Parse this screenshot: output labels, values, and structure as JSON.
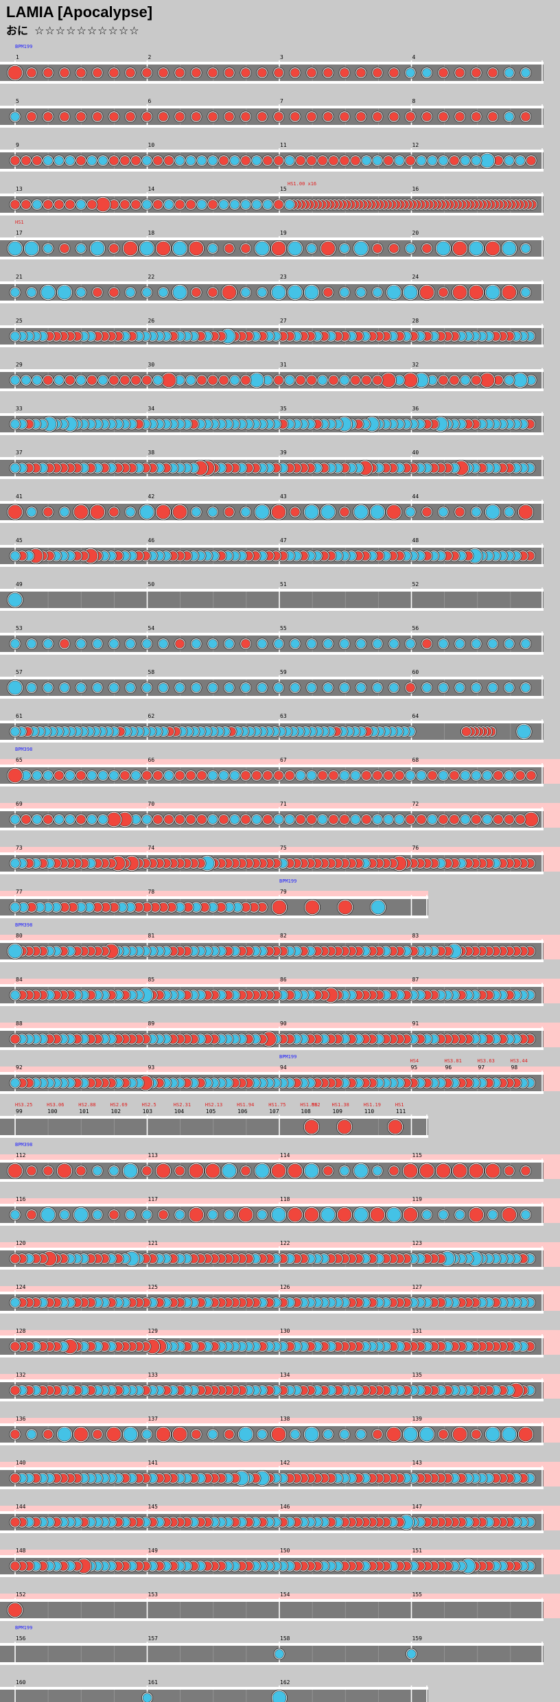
{
  "song": {
    "title": "LAMIA [Apocalypse]",
    "difficulty_label": "おに",
    "stars": "☆☆☆☆☆☆☆☆☆☆"
  },
  "colors": {
    "don": "#f0463c",
    "ka": "#44c2e6",
    "lane": "#7b7b7b",
    "gogo_background": "#ffc9c9",
    "bpm_text": "#1c1cff",
    "hs_text": "#e02020",
    "page_background": "#c9c9c9"
  },
  "chart": {
    "measures_per_row": 4,
    "rows": [
      {
        "row": 0,
        "measures": [
          "1",
          "2",
          "3",
          "4"
        ],
        "bpm_label": "BPM199",
        "pattern": "sparse_mixed",
        "big_first": true
      },
      {
        "row": 1,
        "measures": [
          "5",
          "6",
          "7",
          "8"
        ],
        "pattern": "sparse_don"
      },
      {
        "row": 2,
        "measures": [
          "9",
          "10",
          "11",
          "12"
        ],
        "pattern": "mixed"
      },
      {
        "row": 3,
        "measures": [
          "13",
          "14",
          "15",
          "16"
        ],
        "pattern": "mixed_roll",
        "annotation": "HS1.00 x16"
      },
      {
        "row": 4,
        "measures": [
          "17",
          "18",
          "19",
          "20"
        ],
        "hs_label": "HS1",
        "pattern": "big_mixed"
      },
      {
        "row": 5,
        "measures": [
          "21",
          "22",
          "23",
          "24"
        ],
        "pattern": "big_mixed"
      },
      {
        "row": 6,
        "measures": [
          "25",
          "26",
          "27",
          "28"
        ],
        "pattern": "dense_mixed"
      },
      {
        "row": 7,
        "measures": [
          "29",
          "30",
          "31",
          "32"
        ],
        "pattern": "mixed"
      },
      {
        "row": 8,
        "measures": [
          "33",
          "34",
          "35",
          "36"
        ],
        "pattern": "dense_ka"
      },
      {
        "row": 9,
        "measures": [
          "37",
          "38",
          "39",
          "40"
        ],
        "pattern": "dense_mixed"
      },
      {
        "row": 10,
        "measures": [
          "41",
          "42",
          "43",
          "44"
        ],
        "pattern": "big_mixed"
      },
      {
        "row": 11,
        "measures": [
          "45",
          "46",
          "47",
          "48"
        ],
        "pattern": "dense_mixed"
      },
      {
        "row": 12,
        "measures": [
          "49",
          "50",
          "51",
          "52"
        ],
        "pattern": "single_ka"
      },
      {
        "row": 13,
        "measures": [
          "53",
          "54",
          "55",
          "56"
        ],
        "pattern": "sparse_ka"
      },
      {
        "row": 14,
        "measures": [
          "57",
          "58",
          "59",
          "60"
        ],
        "pattern": "sparse_ka"
      },
      {
        "row": 15,
        "measures": [
          "61",
          "62",
          "63",
          "64"
        ],
        "pattern": "dense_ka_roll"
      },
      {
        "row": 16,
        "measures": [
          "65",
          "66",
          "67",
          "68"
        ],
        "bpm_label": "BPM398",
        "gogo": true,
        "pattern": "mixed"
      },
      {
        "row": 17,
        "measures": [
          "69",
          "70",
          "71",
          "72"
        ],
        "gogo": true,
        "pattern": "mixed"
      },
      {
        "row": 18,
        "measures": [
          "73",
          "74",
          "75",
          "76"
        ],
        "gogo": true,
        "pattern": "dense_don"
      },
      {
        "row": 19,
        "measures": [
          "77",
          "78",
          "79"
        ],
        "gogo": true,
        "bpm_label_mid": "BPM199",
        "pattern": "mixed_end"
      },
      {
        "row": 20,
        "measures": [
          "80",
          "81",
          "82",
          "83"
        ],
        "bpm_label": "BPM398",
        "gogo": true,
        "pattern": "dense_mixed"
      },
      {
        "row": 21,
        "measures": [
          "84",
          "85",
          "86",
          "87"
        ],
        "gogo": true,
        "pattern": "dense_mixed"
      },
      {
        "row": 22,
        "measures": [
          "88",
          "89",
          "90",
          "91"
        ],
        "gogo": true,
        "pattern": "dense_mixed"
      },
      {
        "row": 23,
        "measures": [
          "92",
          "93",
          "94",
          "95",
          "96",
          "97",
          "98"
        ],
        "gogo": true,
        "bpm_label_mid": "BPM199",
        "hs_labels": [
          "HS4",
          "HS3.81",
          "HS3.63",
          "HS3.44"
        ],
        "pattern": "dense_mixed"
      },
      {
        "row": 24,
        "measures": [
          "99",
          "100",
          "101",
          "102",
          "103",
          "104",
          "105",
          "106",
          "107",
          "108",
          "109",
          "110",
          "111"
        ],
        "hs_labels": [
          "HS3.25",
          "HS3.06",
          "HS2.88",
          "HS2.69",
          "HS2.5",
          "HS2.31",
          "HS2.13",
          "HS1.94",
          "HS1.75",
          "HS1.56",
          "HS1.38",
          "HS1.19",
          "HS1"
        ],
        "hs_label_end": "HS2",
        "pattern": "big_don_end"
      },
      {
        "row": 25,
        "measures": [
          "112",
          "113",
          "114",
          "115"
        ],
        "bpm_label": "BPM398",
        "gogo": true,
        "pattern": "big_mixed"
      },
      {
        "row": 26,
        "measures": [
          "116",
          "117",
          "118",
          "119"
        ],
        "gogo": true,
        "pattern": "big_mixed"
      },
      {
        "row": 27,
        "measures": [
          "120",
          "121",
          "122",
          "123"
        ],
        "gogo": true,
        "pattern": "dense_mixed"
      },
      {
        "row": 28,
        "measures": [
          "124",
          "125",
          "126",
          "127"
        ],
        "gogo": true,
        "pattern": "dense_mixed"
      },
      {
        "row": 29,
        "measures": [
          "128",
          "129",
          "130",
          "131"
        ],
        "gogo": true,
        "pattern": "dense_mixed"
      },
      {
        "row": 30,
        "measures": [
          "132",
          "133",
          "134",
          "135"
        ],
        "gogo": true,
        "pattern": "dense_mixed"
      },
      {
        "row": 31,
        "measures": [
          "136",
          "137",
          "138",
          "139"
        ],
        "gogo": true,
        "pattern": "big_mixed"
      },
      {
        "row": 32,
        "measures": [
          "140",
          "141",
          "142",
          "143"
        ],
        "gogo": true,
        "pattern": "dense_mixed"
      },
      {
        "row": 33,
        "measures": [
          "144",
          "145",
          "146",
          "147"
        ],
        "gogo": true,
        "pattern": "dense_mixed"
      },
      {
        "row": 34,
        "measures": [
          "148",
          "149",
          "150",
          "151"
        ],
        "gogo": true,
        "pattern": "dense_mixed"
      },
      {
        "row": 35,
        "measures": [
          "152",
          "153",
          "154",
          "155"
        ],
        "gogo": true,
        "pattern": "single_big_don"
      },
      {
        "row": 36,
        "measures": [
          "156",
          "157",
          "158",
          "159"
        ],
        "bpm_label": "BPM199",
        "pattern": "two_ka"
      },
      {
        "row": 37,
        "measures": [
          "160",
          "161",
          "162"
        ],
        "pattern": "end_ka"
      }
    ]
  }
}
